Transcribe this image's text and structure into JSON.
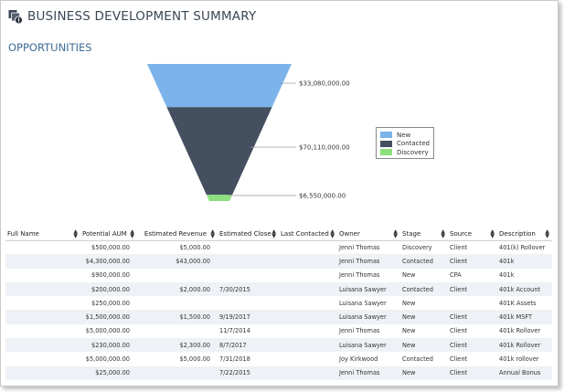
{
  "header": {
    "title": "BUSINESS DEVELOPMENT SUMMARY"
  },
  "section": {
    "title": "OPPORTUNITIES"
  },
  "chart_data": {
    "type": "funnel",
    "stages": [
      "New",
      "Contacted",
      "Discovery"
    ],
    "values": [
      33080000,
      70110000,
      6550000
    ],
    "value_labels": [
      "$33,080,000.00",
      "$70,110,000.00",
      "$6,550,000.00"
    ],
    "colors": [
      "#7bb3ea",
      "#444f60",
      "#8de07e"
    ],
    "legend_position": "right"
  },
  "table": {
    "columns": [
      "Full Name",
      "Potential AUM",
      "Estimated Revenue",
      "Estimated Close",
      "Last Contacted",
      "Owner",
      "Stage",
      "Source",
      "Description"
    ],
    "rows": [
      [
        "",
        "$500,000.00",
        "$5,000.00",
        "",
        "",
        "Jenni Thomas",
        "Discovery",
        "Client",
        "401(k) Rollover"
      ],
      [
        "",
        "$4,300,000.00",
        "$43,000.00",
        "",
        "",
        "Jenni Thomas",
        "Contacted",
        "Client",
        "401k"
      ],
      [
        "",
        "$900,000.00",
        "",
        "",
        "",
        "Jenni Thomas",
        "New",
        "CPA",
        "401k"
      ],
      [
        "",
        "$200,000.00",
        "$2,000.00",
        "7/30/2015",
        "",
        "Luisana Sawyer",
        "Contacted",
        "Client",
        "401k Account"
      ],
      [
        "",
        "$250,000.00",
        "",
        "",
        "",
        "Luisana Sawyer",
        "New",
        "",
        "401K Assets"
      ],
      [
        "",
        "$1,500,000.00",
        "$1,500.00",
        "9/19/2017",
        "",
        "Luisana Sawyer",
        "New",
        "Client",
        "401k MSFT"
      ],
      [
        "",
        "$5,000,000.00",
        "",
        "11/7/2014",
        "",
        "Jenni Thomas",
        "New",
        "Client",
        "401k Rollover"
      ],
      [
        "",
        "$230,000.00",
        "$2,300.00",
        "8/7/2017",
        "",
        "Luisana Sawyer",
        "New",
        "Client",
        "401k Rollover"
      ],
      [
        "",
        "$5,000,000.00",
        "$5,000.00",
        "7/31/2018",
        "",
        "Joy Kirkwood",
        "Contacted",
        "Client",
        "401k rollover"
      ],
      [
        "",
        "$25,000.00",
        "",
        "7/22/2015",
        "",
        "Jenni Thomas",
        "New",
        "Client",
        "Annual Bonus"
      ]
    ]
  }
}
